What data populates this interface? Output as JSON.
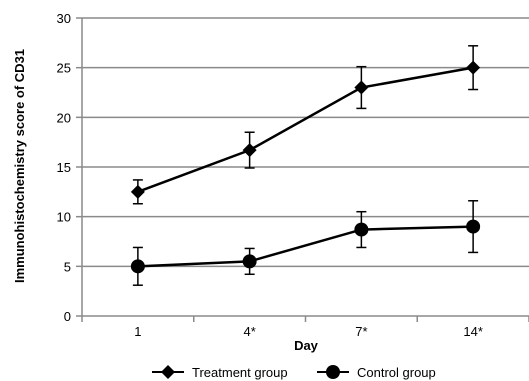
{
  "chart_data": {
    "type": "line",
    "title": "",
    "xlabel": "Day",
    "ylabel": "Immunohistochemistry score of  CD31",
    "categories": [
      "1",
      "4*",
      "7*",
      "14*"
    ],
    "ylim": [
      0,
      30
    ],
    "yticks": [
      0,
      5,
      10,
      15,
      20,
      25,
      30
    ],
    "grid": "horizontal",
    "legend_position": "bottom",
    "series": [
      {
        "name": "Treatment group",
        "marker": "diamond",
        "values": [
          12.5,
          16.7,
          23.0,
          25.0
        ],
        "error": [
          1.2,
          1.8,
          2.1,
          2.2
        ]
      },
      {
        "name": "Control group",
        "marker": "circle",
        "values": [
          5.0,
          5.5,
          8.7,
          9.0
        ],
        "error": [
          1.9,
          1.3,
          1.8,
          2.6
        ]
      }
    ]
  }
}
